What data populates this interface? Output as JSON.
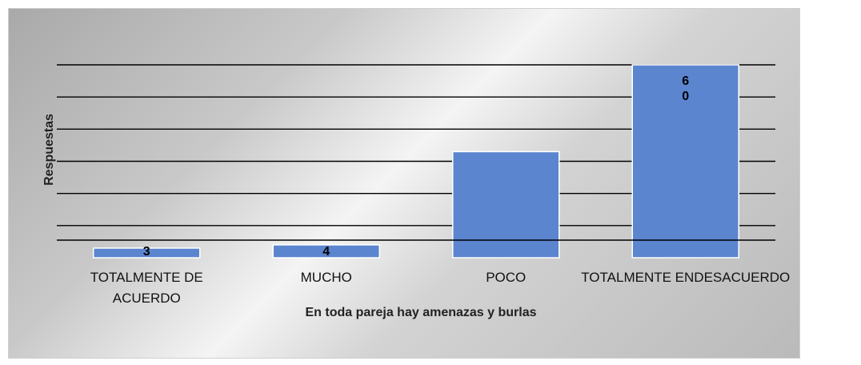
{
  "chart_data": {
    "type": "bar",
    "title": "",
    "xlabel": "En toda pareja hay amenazas y burlas",
    "ylabel": "Respuestas",
    "categories": [
      "TOTALMENTE DE ACUERDO",
      "MUCHO",
      "POCO",
      "TOTALMENTE ENDESACUERDO"
    ],
    "category_lines": [
      [
        "TOTALMENTE DE",
        "ACUERDO"
      ],
      [
        "MUCHO"
      ],
      [
        "POCO"
      ],
      [
        "TOTALMENTE ENDESACUERDO"
      ]
    ],
    "values": [
      3,
      4,
      33,
      60
    ],
    "data_labels": [
      "3",
      "4",
      "",
      "6\n0"
    ],
    "ylim": [
      0,
      60
    ],
    "grid": true,
    "legend": "none",
    "bar_color": "#5b85cf",
    "gridline_color": "#000000"
  }
}
